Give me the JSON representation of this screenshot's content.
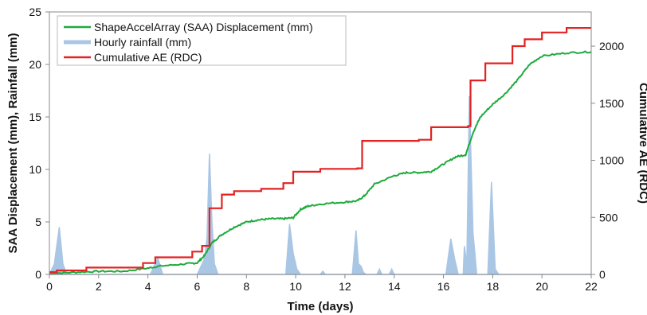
{
  "chart_data": {
    "type": "line",
    "xlabel": "Time (days)",
    "ylabel": "SAA Displacement (mm), Rainfall (mm)",
    "y2label": "Cumulative AE (RDC)",
    "xlim": [
      0,
      22
    ],
    "ylim": [
      0,
      25
    ],
    "y2lim": [
      0,
      2300
    ],
    "x_ticks": [
      0,
      2,
      4,
      6,
      8,
      10,
      12,
      14,
      16,
      18,
      20,
      22
    ],
    "y_ticks": [
      0,
      5,
      10,
      15,
      20,
      25
    ],
    "y2_ticks": [
      0,
      500,
      1000,
      1500,
      2000
    ],
    "grid": false,
    "legend_position": "top-left",
    "series": [
      {
        "name": "ShapeAccelArray (SAA) Displacement (mm)",
        "axis": "left",
        "color": "#1faa3c",
        "style": "line",
        "x": [
          0,
          1,
          2,
          3,
          4,
          4.5,
          5.5,
          6,
          6.3,
          6.6,
          7,
          7.5,
          8,
          8.5,
          9,
          9.5,
          9.9,
          10.2,
          10.5,
          11,
          12,
          12.5,
          12.8,
          13.2,
          14,
          14.5,
          15,
          15.5,
          16,
          16.5,
          16.9,
          17.2,
          17.5,
          18,
          18.5,
          19,
          19.5,
          20,
          21,
          22
        ],
        "values": [
          0.1,
          0.2,
          0.3,
          0.3,
          0.6,
          0.8,
          1.0,
          1.1,
          1.8,
          3.0,
          3.8,
          4.5,
          5.0,
          5.2,
          5.3,
          5.3,
          5.4,
          6.2,
          6.5,
          6.7,
          6.9,
          7.0,
          7.5,
          8.6,
          9.4,
          9.7,
          9.7,
          9.8,
          10.5,
          11.2,
          11.4,
          13.5,
          15.0,
          16.2,
          17.2,
          18.5,
          20.0,
          20.8,
          21.1,
          21.2
        ]
      },
      {
        "name": "Hourly rainfall (mm)",
        "axis": "left",
        "color": "#a9c6e5",
        "style": "area",
        "x": [
          0,
          0.2,
          0.4,
          0.55,
          0.7,
          4.1,
          4.4,
          4.6,
          6.0,
          6.3,
          6.4,
          6.5,
          6.6,
          6.7,
          6.85,
          9.6,
          9.75,
          9.9,
          10.05,
          10.2,
          11.0,
          11.1,
          11.2,
          12.3,
          12.45,
          12.55,
          12.65,
          12.75,
          12.85,
          13.3,
          13.4,
          13.5,
          13.8,
          13.9,
          14.0,
          16.1,
          16.3,
          16.45,
          16.6,
          16.8,
          16.85,
          16.95,
          17.05,
          17.2,
          17.35,
          17.8,
          17.95,
          18.1,
          18.25,
          22
        ],
        "values": [
          0,
          1.0,
          4.5,
          1.0,
          0,
          0,
          1.6,
          0,
          0,
          1.5,
          3.5,
          11.5,
          5.0,
          1.0,
          0,
          0,
          4.8,
          2.0,
          0.5,
          0,
          0,
          0.3,
          0,
          0,
          4.2,
          1.0,
          0.8,
          0.2,
          0,
          0,
          0.5,
          0,
          0,
          0.5,
          0,
          0,
          3.4,
          1.5,
          0,
          0,
          2.7,
          1.0,
          17.0,
          4.0,
          0,
          0,
          8.8,
          0.5,
          0,
          0
        ]
      },
      {
        "name": "Cumulative AE (RDC)",
        "axis": "right",
        "color": "#e32222",
        "style": "step",
        "x": [
          0,
          0.3,
          1.5,
          3.8,
          4.3,
          5.8,
          6.2,
          6.5,
          7.0,
          7.5,
          8.6,
          9.5,
          9.9,
          11.0,
          12.5,
          12.7,
          15.0,
          15.5,
          17.0,
          17.1,
          17.7,
          18.8,
          19.3,
          20.0,
          21.0,
          22.0
        ],
        "values": [
          20,
          35,
          60,
          100,
          150,
          200,
          250,
          580,
          700,
          730,
          750,
          800,
          900,
          925,
          930,
          1170,
          1180,
          1290,
          1300,
          1700,
          1850,
          2000,
          2060,
          2120,
          2160,
          2160
        ]
      }
    ]
  }
}
